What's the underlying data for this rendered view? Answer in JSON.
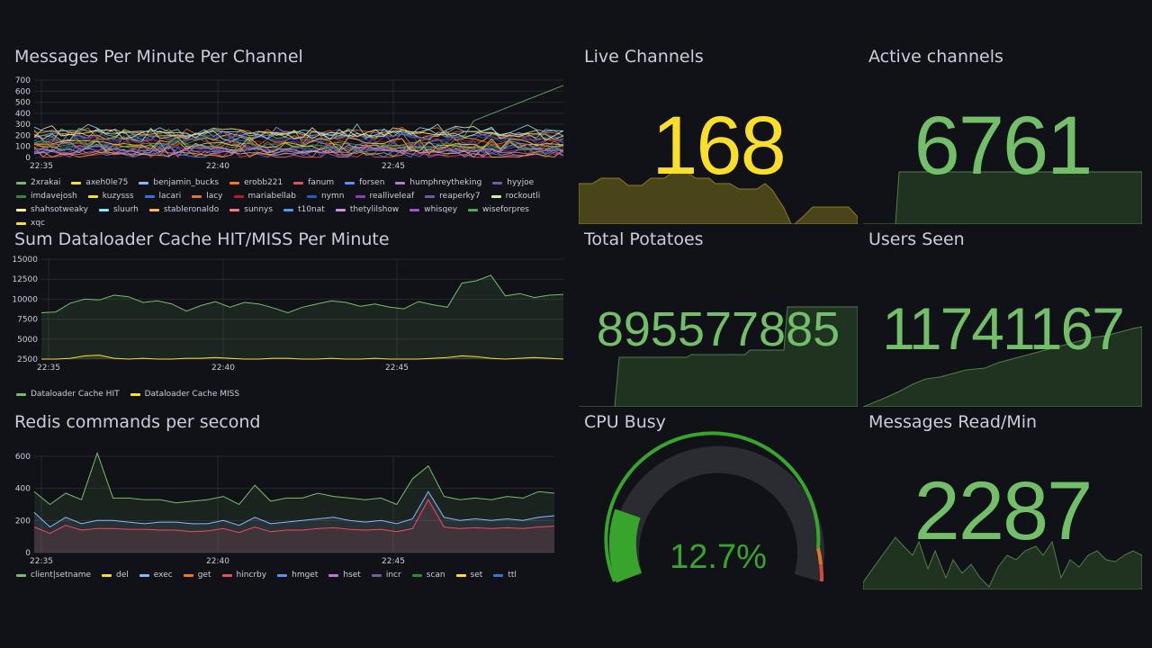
{
  "colors": {
    "bg": "#111217",
    "grid": "#2a2c33",
    "green": "#73bf69",
    "yellow": "#fade2a",
    "greenFill": "#1f3320",
    "yellowFill": "#4a4419"
  },
  "panels": {
    "messages": {
      "title": "Messages Per Minute Per Channel",
      "yticks": [
        "700",
        "600",
        "500",
        "400",
        "300",
        "200",
        "100",
        "0"
      ],
      "xticks": [
        "22:35",
        "22:40",
        "22:45"
      ],
      "legend": [
        {
          "label": "2xrakai",
          "color": "#73bf69"
        },
        {
          "label": "axeh0le75",
          "color": "#fade2a"
        },
        {
          "label": "benjamin_bucks",
          "color": "#8ab8ff"
        },
        {
          "label": "erobb221",
          "color": "#ff780a"
        },
        {
          "label": "fanum",
          "color": "#f2495c"
        },
        {
          "label": "forsen",
          "color": "#5794f2"
        },
        {
          "label": "humphreytheking",
          "color": "#b877d9"
        },
        {
          "label": "hyyjoe",
          "color": "#705da0"
        },
        {
          "label": "imdavejosh",
          "color": "#37872d"
        },
        {
          "label": "kuzysss",
          "color": "#fade2a"
        },
        {
          "label": "lacari",
          "color": "#3274d9"
        },
        {
          "label": "lacy",
          "color": "#e0752d"
        },
        {
          "label": "mariabellab",
          "color": "#c4162a"
        },
        {
          "label": "nymn",
          "color": "#1f60c4"
        },
        {
          "label": "realliveleaf",
          "color": "#8f3bb8"
        },
        {
          "label": "reaperky7",
          "color": "#705da0"
        },
        {
          "label": "rockoutli",
          "color": "#caf2a2"
        },
        {
          "label": "shahsotweaky",
          "color": "#fff899"
        },
        {
          "label": "sluurh",
          "color": "#8ae6ff"
        },
        {
          "label": "stableronaldo",
          "color": "#ffb357"
        },
        {
          "label": "sunnys",
          "color": "#ff7383"
        },
        {
          "label": "t10nat",
          "color": "#5794f2"
        },
        {
          "label": "thetylilshow",
          "color": "#ca95e5"
        },
        {
          "label": "whisqey",
          "color": "#a352cc"
        },
        {
          "label": "wiseforpres",
          "color": "#56a64b"
        },
        {
          "label": "xqc",
          "color": "#fade2a"
        }
      ]
    },
    "dataloader": {
      "title": "Sum Dataloader Cache HIT/MISS Per Minute",
      "yticks": [
        "15000",
        "12500",
        "10000",
        "7500",
        "5000",
        "2500"
      ],
      "xticks": [
        "22:35",
        "22:40",
        "22:45"
      ],
      "legend": [
        {
          "label": "Dataloader Cache HIT",
          "color": "#73bf69"
        },
        {
          "label": "Dataloader Cache MISS",
          "color": "#fade2a"
        }
      ]
    },
    "redis": {
      "title": "Redis commands per second",
      "yticks": [
        "600",
        "400",
        "200",
        "0"
      ],
      "xticks": [
        "22:35",
        "22:40",
        "22:45"
      ],
      "legend": [
        {
          "label": "client|setname",
          "color": "#73bf69"
        },
        {
          "label": "del",
          "color": "#fade2a"
        },
        {
          "label": "exec",
          "color": "#8ab8ff"
        },
        {
          "label": "get",
          "color": "#ff780a"
        },
        {
          "label": "hincrby",
          "color": "#f2495c"
        },
        {
          "label": "hmget",
          "color": "#5794f2"
        },
        {
          "label": "hset",
          "color": "#b877d9"
        },
        {
          "label": "incr",
          "color": "#705da0"
        },
        {
          "label": "scan",
          "color": "#37872d"
        },
        {
          "label": "set",
          "color": "#fade2a"
        },
        {
          "label": "ttl",
          "color": "#3274d9"
        }
      ]
    },
    "live_channels": {
      "title": "Live Channels",
      "value": "168",
      "color": "#fade2a"
    },
    "active_channels": {
      "title": "Active channels",
      "value": "6761",
      "color": "#73bf69"
    },
    "total_potatoes": {
      "title": "Total Potatoes",
      "value": "895577885",
      "color": "#73bf69"
    },
    "users_seen": {
      "title": "Users Seen",
      "value": "11741167",
      "color": "#73bf69"
    },
    "cpu_busy": {
      "title": "CPU Busy",
      "value": "12.7%",
      "percent": 12.7,
      "color": "#37a52c"
    },
    "messages_read": {
      "title": "Messages Read/Min",
      "value": "2287",
      "color": "#73bf69"
    }
  }
}
